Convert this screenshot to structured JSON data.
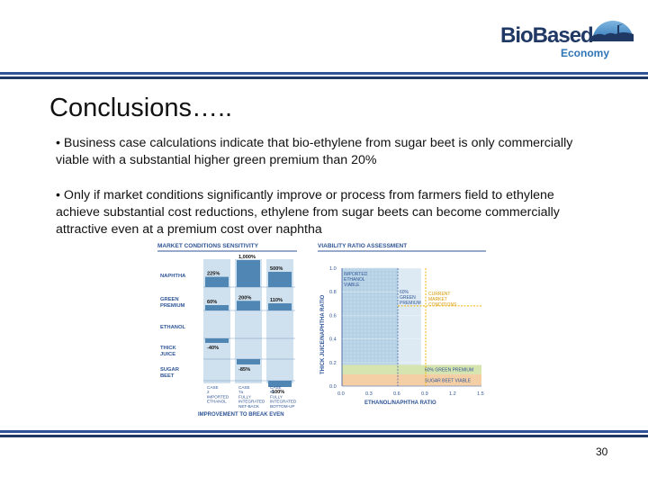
{
  "logo": {
    "line1": "BioBased",
    "line2": "Economy"
  },
  "slide": {
    "title": "Conclusions…..",
    "bullets": [
      "• Business case calculations indicate that bio-ethylene from sugar beet is only commercially viable with a substantial higher green premium than 20%",
      "• Only if market conditions significantly improve or process from farmers field to ethylene achieve substantial cost reductions, ethylene from sugar beets can become commercially attractive even at a premium cost over naphtha"
    ],
    "page_number": "30"
  },
  "colors": {
    "rule": "#2f5597",
    "bar": "#4f86b4",
    "panel": "#cfe1ee",
    "green": "#d6e4b0",
    "orange": "#f4cfa6"
  },
  "chart_data": [
    {
      "type": "bar",
      "title": "MARKET CONDITIONS SENSITIVITY",
      "categories": [
        "NAPHTHA",
        "GREEN PREMIUM",
        "ETHANOL",
        "THICK JUICE",
        "SUGAR BEET"
      ],
      "series": [
        {
          "name": "CASE 2 IMPORTED ETHANOL",
          "values": [
            225,
            60,
            -40,
            null,
            null
          ],
          "labels": [
            "225%",
            "60%",
            "-40%",
            "",
            ""
          ]
        },
        {
          "name": "CASE 7a FULLY INTEGRATED NET-BACK",
          "values": [
            1000,
            200,
            null,
            -85,
            null
          ],
          "labels": [
            "1,000%",
            "200%",
            "",
            "-85%",
            ""
          ]
        },
        {
          "name": "CASE 7b FULLY INTEGRATED BOTTOM-UP",
          "values": [
            500,
            110,
            null,
            null,
            -100
          ],
          "labels": [
            "500%",
            "110%",
            "",
            "",
            "-100%"
          ]
        }
      ],
      "xlabel": "IMPROVEMENT TO BREAK EVEN",
      "legend": "bottom"
    },
    {
      "type": "area",
      "title": "VIABILITY RATIO ASSESSMENT",
      "xlabel": "ETHANOL/NAPHTHA RATIO",
      "ylabel": "THICK JUICE/NAPHTHA RATIO",
      "xticks": [
        "0.0",
        "0.3",
        "0.6",
        "0.9",
        "1.2",
        "1.5"
      ],
      "yticks": [
        "0.0",
        "0.2",
        "0.4",
        "0.6",
        "0.8",
        "1.0"
      ],
      "xlim": [
        0,
        1.5
      ],
      "ylim": [
        0,
        1.0
      ],
      "regions": [
        {
          "label": "IMPORTED ETHANOL VIABLE",
          "x": [
            0,
            0.6
          ],
          "y": [
            0,
            1.0
          ]
        },
        {
          "label": "60% GREEN PREMIUM",
          "x": [
            0.6,
            0.85
          ],
          "y": [
            0,
            1.0
          ]
        },
        {
          "label": "60% GREEN PREMIUM",
          "x": [
            0,
            1.5
          ],
          "y": [
            0.1,
            0.18
          ]
        },
        {
          "label": "SUGAR BEET VIABLE",
          "x": [
            0,
            1.5
          ],
          "y": [
            0,
            0.1
          ]
        }
      ],
      "annotation": "CURRENT MARKET CONDITIONS",
      "current_x": 0.9,
      "current_y": 0.68
    }
  ]
}
